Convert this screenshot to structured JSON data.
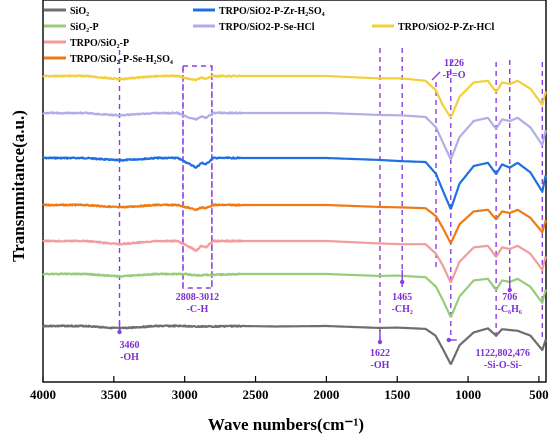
{
  "chart_data": {
    "type": "line",
    "xlabel": "Wave numbers(cm⁻¹)",
    "ylabel": "Transmmitance(a.u.)",
    "xlim": [
      4000,
      450
    ],
    "x_reversed": true,
    "x_ticks": [
      "4000",
      "3500",
      "3000",
      "2500",
      "2000",
      "1500",
      "1000",
      "500"
    ],
    "y_ticks_shown": false,
    "legend_position": "top",
    "series": [
      {
        "name": "SiO₂",
        "color": "#6e6e6e",
        "points": [
          [
            4000,
            0
          ],
          [
            3700,
            0
          ],
          [
            3460,
            -1.5
          ],
          [
            3200,
            0
          ],
          [
            3000,
            0
          ],
          [
            2920,
            -0.4
          ],
          [
            2600,
            0
          ],
          [
            2360,
            -0.3
          ],
          [
            2000,
            0
          ],
          [
            1630,
            -1.2
          ],
          [
            1500,
            -1
          ],
          [
            1300,
            -1.8
          ],
          [
            1230,
            -6
          ],
          [
            1180,
            -14
          ],
          [
            1122,
            -24
          ],
          [
            1060,
            -12
          ],
          [
            960,
            -4
          ],
          [
            860,
            -1.5
          ],
          [
            802,
            -6
          ],
          [
            760,
            -2
          ],
          [
            650,
            -3
          ],
          [
            560,
            -6
          ],
          [
            476,
            -15
          ],
          [
            450,
            -8
          ]
        ]
      },
      {
        "name": "SiO₂-P",
        "color": "#96cc7a",
        "points": [
          [
            4000,
            0
          ],
          [
            3700,
            0
          ],
          [
            3460,
            -1.5
          ],
          [
            3200,
            0
          ],
          [
            3000,
            0
          ],
          [
            2920,
            -0.8
          ],
          [
            2600,
            0
          ],
          [
            2000,
            0
          ],
          [
            1630,
            -1.2
          ],
          [
            1500,
            -1
          ],
          [
            1300,
            -2
          ],
          [
            1226,
            -8
          ],
          [
            1180,
            -16
          ],
          [
            1122,
            -27
          ],
          [
            1060,
            -14
          ],
          [
            960,
            -4
          ],
          [
            860,
            -3
          ],
          [
            802,
            -10
          ],
          [
            760,
            -4
          ],
          [
            706,
            -5
          ],
          [
            650,
            -3
          ],
          [
            560,
            -8
          ],
          [
            476,
            -18
          ],
          [
            450,
            -9
          ]
        ]
      },
      {
        "name": "TRPO/SiO₂-P",
        "color": "#f29c9c",
        "points": [
          [
            4000,
            0
          ],
          [
            3700,
            0
          ],
          [
            3460,
            -2
          ],
          [
            3200,
            0
          ],
          [
            3050,
            0
          ],
          [
            2960,
            -4
          ],
          [
            2920,
            -6
          ],
          [
            2880,
            -3
          ],
          [
            2850,
            -4
          ],
          [
            2800,
            0
          ],
          [
            2000,
            0
          ],
          [
            1630,
            -1.5
          ],
          [
            1465,
            -2
          ],
          [
            1300,
            -2
          ],
          [
            1226,
            -8
          ],
          [
            1180,
            -15
          ],
          [
            1122,
            -26
          ],
          [
            1060,
            -13
          ],
          [
            960,
            -4
          ],
          [
            860,
            -3
          ],
          [
            802,
            -10
          ],
          [
            760,
            -4
          ],
          [
            706,
            -5
          ],
          [
            650,
            -3
          ],
          [
            560,
            -8
          ],
          [
            476,
            -18
          ],
          [
            450,
            -9
          ]
        ]
      },
      {
        "name": "TRPO/SiO₂-P-Se-H₂SO₄",
        "color": "#ef7a14",
        "points": [
          [
            4000,
            0
          ],
          [
            3700,
            0
          ],
          [
            3460,
            -1.5
          ],
          [
            3200,
            0
          ],
          [
            3050,
            0
          ],
          [
            2960,
            -2
          ],
          [
            2920,
            -3
          ],
          [
            2880,
            -1.5
          ],
          [
            2850,
            -2
          ],
          [
            2800,
            0
          ],
          [
            2000,
            0
          ],
          [
            1630,
            -1.2
          ],
          [
            1465,
            -1.5
          ],
          [
            1300,
            -2
          ],
          [
            1226,
            -7
          ],
          [
            1180,
            -14
          ],
          [
            1122,
            -24
          ],
          [
            1060,
            -12
          ],
          [
            960,
            -4
          ],
          [
            860,
            -3
          ],
          [
            802,
            -9
          ],
          [
            760,
            -4
          ],
          [
            706,
            -5
          ],
          [
            650,
            -3
          ],
          [
            560,
            -8
          ],
          [
            476,
            -17
          ],
          [
            450,
            -9
          ]
        ]
      },
      {
        "name": "TRPO/SiO2-P-Zr-H₂SO₄",
        "color": "#1f6fe0",
        "points": [
          [
            4000,
            0
          ],
          [
            3700,
            0
          ],
          [
            3460,
            -1.5
          ],
          [
            3200,
            0
          ],
          [
            3050,
            0
          ],
          [
            2960,
            -4
          ],
          [
            2920,
            -6
          ],
          [
            2880,
            -3
          ],
          [
            2850,
            -4
          ],
          [
            2800,
            0
          ],
          [
            2000,
            0
          ],
          [
            1630,
            -1.2
          ],
          [
            1465,
            -2
          ],
          [
            1300,
            -2.5
          ],
          [
            1226,
            -10
          ],
          [
            1180,
            -20
          ],
          [
            1122,
            -32
          ],
          [
            1060,
            -16
          ],
          [
            960,
            -5
          ],
          [
            860,
            -3
          ],
          [
            802,
            -10
          ],
          [
            760,
            -4
          ],
          [
            706,
            -6
          ],
          [
            650,
            -3
          ],
          [
            560,
            -9
          ],
          [
            476,
            -21
          ],
          [
            450,
            -10
          ]
        ]
      },
      {
        "name": "TRPO/SiO2-P-Se-HCl",
        "color": "#b0aee6",
        "points": [
          [
            4000,
            0
          ],
          [
            3700,
            0
          ],
          [
            3460,
            -1.5
          ],
          [
            3200,
            0
          ],
          [
            3050,
            0
          ],
          [
            2960,
            -3
          ],
          [
            2920,
            -4
          ],
          [
            2880,
            -2
          ],
          [
            2850,
            -3
          ],
          [
            2800,
            0
          ],
          [
            2000,
            0
          ],
          [
            1630,
            -1.2
          ],
          [
            1465,
            -1.5
          ],
          [
            1300,
            -2.5
          ],
          [
            1226,
            -9
          ],
          [
            1180,
            -18
          ],
          [
            1122,
            -29
          ],
          [
            1060,
            -15
          ],
          [
            960,
            -5
          ],
          [
            860,
            -3
          ],
          [
            802,
            -10
          ],
          [
            760,
            -4
          ],
          [
            706,
            -5
          ],
          [
            650,
            -3
          ],
          [
            560,
            -9
          ],
          [
            476,
            -20
          ],
          [
            450,
            -10
          ]
        ]
      },
      {
        "name": "TRPO/SiO2-P-Zr-HCl",
        "color": "#f3cf3a",
        "points": [
          [
            4000,
            0
          ],
          [
            3700,
            0
          ],
          [
            3460,
            -2
          ],
          [
            3200,
            0
          ],
          [
            3050,
            0
          ],
          [
            2960,
            -2
          ],
          [
            2920,
            -2.5
          ],
          [
            2880,
            -1
          ],
          [
            2850,
            -1.5
          ],
          [
            2800,
            0
          ],
          [
            2000,
            0
          ],
          [
            1630,
            -1.5
          ],
          [
            1465,
            -1.5
          ],
          [
            1300,
            -3
          ],
          [
            1226,
            -9
          ],
          [
            1180,
            -18
          ],
          [
            1122,
            -26
          ],
          [
            1060,
            -13
          ],
          [
            960,
            -4
          ],
          [
            860,
            -3
          ],
          [
            802,
            -10
          ],
          [
            760,
            -4
          ],
          [
            706,
            -5
          ],
          [
            650,
            -3
          ],
          [
            560,
            -8
          ],
          [
            476,
            -18
          ],
          [
            450,
            -9
          ]
        ]
      }
    ],
    "annotations": [
      {
        "wavenumber": 3460,
        "lines": [
          "3460",
          "-OH"
        ]
      },
      {
        "wavenumber": 2808,
        "lines": [
          "2808-3012",
          "-C-H"
        ]
      },
      {
        "wavenumber": 1465,
        "lines": [
          "1465",
          "-CH₂"
        ]
      },
      {
        "wavenumber": 1622,
        "lines": [
          "1622",
          "-OH"
        ]
      },
      {
        "wavenumber": 1226,
        "lines": [
          "1226",
          "-P=O"
        ]
      },
      {
        "wavenumber": 1122,
        "lines": [
          "1122,802,476",
          "-Si-O-Si-"
        ]
      },
      {
        "wavenumber": 706,
        "lines": [
          "706",
          "-C₆H₆"
        ]
      }
    ],
    "reference_lines_cm": [
      3460,
      3012,
      2808,
      1622,
      1465,
      1226,
      1122,
      802,
      706,
      476
    ]
  }
}
